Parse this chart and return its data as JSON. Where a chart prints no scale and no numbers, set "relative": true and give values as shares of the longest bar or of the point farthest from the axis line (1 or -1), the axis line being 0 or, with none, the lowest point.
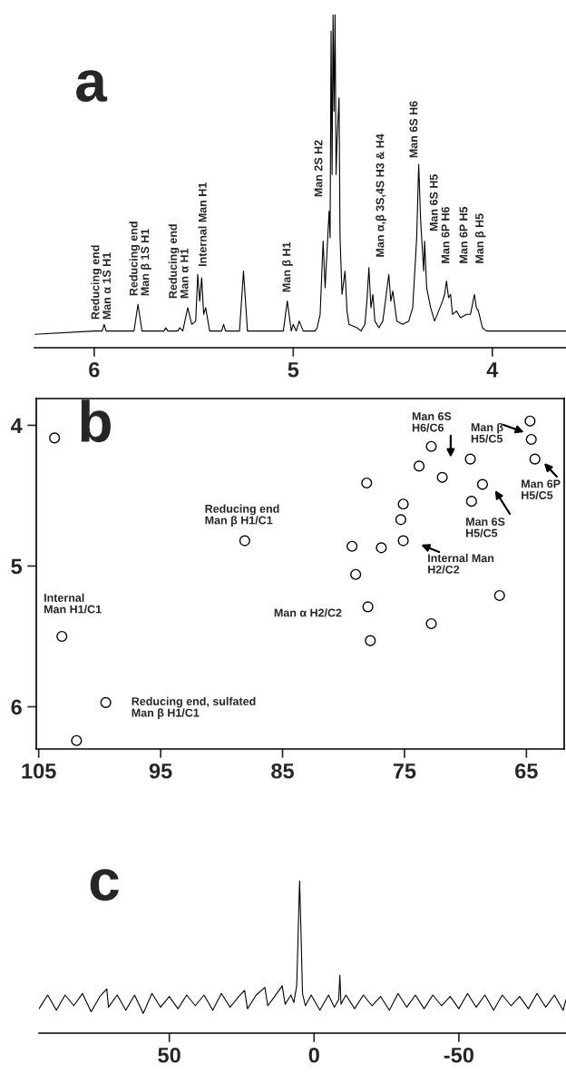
{
  "chart_data": [
    {
      "type": "line",
      "title": "a",
      "relative": true,
      "color": "#000000",
      "x": [
        6.3,
        6.0,
        5.96,
        5.95,
        5.94,
        5.8,
        5.78,
        5.76,
        5.65,
        5.64,
        5.63,
        5.58,
        5.57,
        5.555,
        5.53,
        5.51,
        5.49,
        5.48,
        5.47,
        5.46,
        5.45,
        5.44,
        5.42,
        5.36,
        5.35,
        5.34,
        5.27,
        5.25,
        5.23,
        5.05,
        5.03,
        5.01,
        5.0,
        4.985,
        4.97,
        4.95,
        4.89,
        4.88,
        4.865,
        4.85,
        4.84,
        4.82,
        4.815,
        4.81,
        4.805,
        4.8,
        4.795,
        4.79,
        4.785,
        4.78,
        4.77,
        4.765,
        4.755,
        4.74,
        4.73,
        4.72,
        4.68,
        4.66,
        4.64,
        4.63,
        4.62,
        4.61,
        4.6,
        4.59,
        4.57,
        4.55,
        4.52,
        4.51,
        4.5,
        4.48,
        4.45,
        4.42,
        4.4,
        4.38,
        4.37,
        4.36,
        4.345,
        4.34,
        4.33,
        4.31,
        4.29,
        4.27,
        4.25,
        4.24,
        4.23,
        4.22,
        4.21,
        4.2,
        4.18,
        4.16,
        4.13,
        4.11,
        4.09,
        4.08,
        4.07,
        4.05,
        4.03,
        3.95,
        3.8,
        3.7,
        3.63
      ],
      "values": [
        0.04,
        0.05,
        0.05,
        0.07,
        0.05,
        0.05,
        0.13,
        0.05,
        0.05,
        0.06,
        0.05,
        0.05,
        0.06,
        0.05,
        0.12,
        0.07,
        0.08,
        0.22,
        0.14,
        0.21,
        0.1,
        0.12,
        0.05,
        0.05,
        0.07,
        0.05,
        0.05,
        0.23,
        0.05,
        0.05,
        0.14,
        0.05,
        0.07,
        0.05,
        0.08,
        0.05,
        0.05,
        0.06,
        0.1,
        0.32,
        0.18,
        0.41,
        0.33,
        0.95,
        0.52,
        1.0,
        0.71,
        1.0,
        0.52,
        0.62,
        0.75,
        0.33,
        0.16,
        0.23,
        0.11,
        0.07,
        0.06,
        0.05,
        0.07,
        0.14,
        0.24,
        0.12,
        0.16,
        0.08,
        0.06,
        0.08,
        0.22,
        0.14,
        0.17,
        0.08,
        0.07,
        0.08,
        0.12,
        0.33,
        0.55,
        0.38,
        0.23,
        0.32,
        0.18,
        0.12,
        0.08,
        0.11,
        0.14,
        0.16,
        0.2,
        0.15,
        0.16,
        0.1,
        0.11,
        0.09,
        0.1,
        0.1,
        0.16,
        0.12,
        0.11,
        0.06,
        0.05,
        0.05,
        0.05,
        0.05,
        0.05
      ],
      "xlim": [
        6.3,
        3.63
      ],
      "xticks": [
        6,
        5,
        4
      ],
      "annotations": [
        "Reducing end\nMan α 1S H1",
        "Reducing end\nMan β 1S H1",
        "Reducing end\nMan α H1",
        "Internal Man H1",
        "Man β H1",
        "Man 2S H2",
        "Man α,β 3S,4S H3 & H4",
        "Man 6S H6",
        "Man 6S H5",
        "Man 6P H6",
        "Man 6P H5",
        "Man β H5"
      ]
    },
    {
      "type": "scatter",
      "title": "b",
      "color": "#000000",
      "marker": "circle",
      "x": [
        103.1,
        99.5,
        88.1,
        78.0,
        79.3,
        79.0,
        76.9,
        75.1,
        75.3,
        75.1,
        78.1,
        73.8,
        72.8,
        71.9,
        69.6,
        68.6,
        69.5,
        64.6,
        64.3,
        103.7,
        67.2,
        72.8,
        77.8,
        64.7,
        101.9
      ],
      "values": [
        5.5,
        5.97,
        4.82,
        5.29,
        4.86,
        5.06,
        4.87,
        4.82,
        4.67,
        4.56,
        4.41,
        4.29,
        4.15,
        4.37,
        4.24,
        4.42,
        4.54,
        4.1,
        4.24,
        4.09,
        5.21,
        5.41,
        5.53,
        3.97,
        6.24
      ],
      "xlim": [
        105.2,
        61.9
      ],
      "ylim": [
        6.3,
        3.81
      ],
      "xticks": [
        105,
        95,
        85,
        75,
        65
      ],
      "yticks": [
        4,
        5,
        6
      ],
      "annotations": [
        "Internal\nMan H1/C1",
        "Reducing end, sulfated\nMan β H1/C1",
        "Reducing end\nMan β H1/C1",
        "Man α H2/C2",
        "Internal Man\nH2/C2",
        "Man 6S\nH6/C6",
        "Man β\nH5/C5",
        "Man 6P\nH5/C5",
        "Man 6S\nH5/C5"
      ]
    },
    {
      "type": "line",
      "title": "c",
      "relative": true,
      "color": "#000000",
      "x": [
        95,
        92,
        89,
        86,
        83,
        80,
        77,
        74,
        71.6,
        71,
        68,
        65,
        62,
        59,
        56,
        53,
        50,
        47,
        44,
        41,
        38,
        35,
        32,
        29,
        26,
        24,
        23,
        20,
        17,
        16,
        14,
        11,
        10,
        8,
        7,
        6,
        5.5,
        5,
        4.5,
        4,
        3,
        1,
        -2,
        -5,
        -7,
        -8.5,
        -8.9,
        -9.3,
        -11,
        -14,
        -17,
        -20,
        -23,
        -26,
        -29,
        -32,
        -35,
        -38,
        -41,
        -44,
        -47,
        -50,
        -53,
        -56,
        -59,
        -62,
        -65,
        -68,
        -71,
        -74,
        -77,
        -80,
        -83,
        -86,
        -87
      ],
      "values": [
        0.16,
        0.25,
        0.15,
        0.25,
        0.18,
        0.26,
        0.14,
        0.24,
        0.29,
        0.17,
        0.25,
        0.15,
        0.25,
        0.13,
        0.26,
        0.17,
        0.24,
        0.16,
        0.25,
        0.18,
        0.25,
        0.15,
        0.26,
        0.17,
        0.24,
        0.28,
        0.16,
        0.25,
        0.3,
        0.18,
        0.23,
        0.31,
        0.19,
        0.25,
        0.2,
        0.31,
        0.65,
        1.0,
        0.65,
        0.26,
        0.18,
        0.25,
        0.15,
        0.25,
        0.17,
        0.22,
        0.38,
        0.19,
        0.25,
        0.16,
        0.25,
        0.18,
        0.24,
        0.15,
        0.26,
        0.17,
        0.25,
        0.16,
        0.25,
        0.18,
        0.24,
        0.16,
        0.26,
        0.17,
        0.25,
        0.15,
        0.25,
        0.18,
        0.24,
        0.16,
        0.26,
        0.17,
        0.25,
        0.15,
        0.22
      ],
      "xlim": [
        95,
        -87
      ],
      "xticks": [
        50,
        0,
        -50
      ]
    }
  ]
}
